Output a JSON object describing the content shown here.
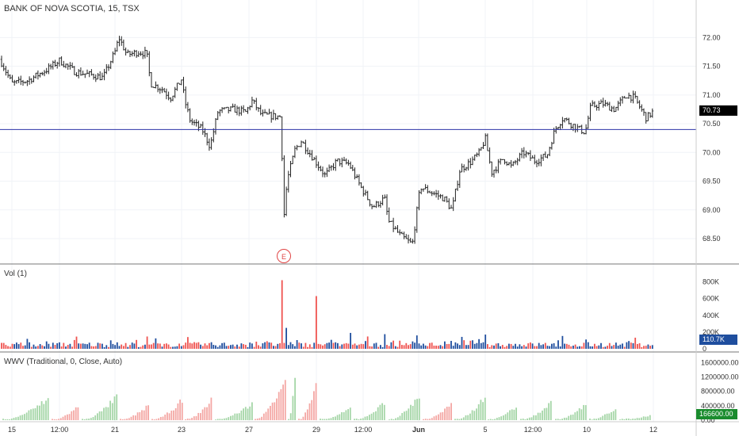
{
  "chart": {
    "title": "BANK OF NOVA SCOTIA, 15, TSX",
    "volume_label": "Vol (1)",
    "wwv_label": "WWV (Traditional, 0, Close, Auto)",
    "earnings_marker": "E"
  },
  "price_axis": {
    "ticks": [
      "72.00",
      "71.50",
      "71.00",
      "70.50",
      "70.00",
      "69.50",
      "69.00",
      "68.50"
    ],
    "current_price": "70.73",
    "current_price_color": "#000000"
  },
  "volume_axis": {
    "ticks": [
      "800K",
      "600K",
      "400K",
      "200K",
      "0"
    ],
    "current_value": "110.7K",
    "current_value_color": "#1f4e9e"
  },
  "wwv_axis": {
    "ticks": [
      "1600000.00",
      "1200000.00",
      "800000.00",
      "400000.00",
      "0.00"
    ],
    "current_value": "166600.00",
    "current_value_color": "#1a8c2e"
  },
  "time_axis": {
    "ticks": [
      "15",
      "12:00",
      "21",
      "23",
      "27",
      "29",
      "12:00",
      "Jun",
      "5",
      "12:00",
      "10",
      "12"
    ]
  },
  "colors": {
    "candle": "#222222",
    "horizontal_line": "#2c32a8",
    "vol_up": "#1f4e9e",
    "vol_down": "#ef5350",
    "wwv_up": "#a5d6a7",
    "wwv_down": "#f4a7a4",
    "grid": "#f0f3f7"
  },
  "chart_data": {
    "type": "candlestick",
    "horizontal_line": 70.4,
    "price_range": [
      68.1,
      72.35
    ],
    "volume_range": [
      0,
      900000
    ],
    "wwv_range": [
      0,
      1650000
    ],
    "price_path": [
      [
        0,
        71.62
      ],
      [
        15,
        71.2
      ],
      [
        35,
        71.25
      ],
      [
        60,
        71.45
      ],
      [
        75,
        71.6
      ],
      [
        95,
        71.4
      ],
      [
        115,
        71.35
      ],
      [
        130,
        71.3
      ],
      [
        145,
        71.75
      ],
      [
        150,
        72.0
      ],
      [
        160,
        71.7
      ],
      [
        175,
        71.75
      ],
      [
        185,
        71.72
      ],
      [
        190,
        71.2
      ],
      [
        205,
        71.1
      ],
      [
        215,
        70.95
      ],
      [
        230,
        71.3
      ],
      [
        232,
        70.95
      ],
      [
        240,
        70.55
      ],
      [
        255,
        70.4
      ],
      [
        265,
        70.1
      ],
      [
        275,
        70.72
      ],
      [
        295,
        70.75
      ],
      [
        310,
        70.7
      ],
      [
        318,
        70.9
      ],
      [
        330,
        70.65
      ],
      [
        355,
        70.62
      ],
      [
        357,
        68.7
      ],
      [
        362,
        69.5
      ],
      [
        372,
        70.05
      ],
      [
        380,
        70.2
      ],
      [
        395,
        69.9
      ],
      [
        410,
        69.6
      ],
      [
        425,
        69.85
      ],
      [
        440,
        69.8
      ],
      [
        455,
        69.4
      ],
      [
        470,
        69.05
      ],
      [
        485,
        69.2
      ],
      [
        490,
        68.8
      ],
      [
        505,
        68.55
      ],
      [
        520,
        68.4
      ],
      [
        530,
        69.4
      ],
      [
        545,
        69.3
      ],
      [
        560,
        69.2
      ],
      [
        570,
        69.0
      ],
      [
        580,
        69.7
      ],
      [
        595,
        69.85
      ],
      [
        605,
        70.0
      ],
      [
        612,
        70.25
      ],
      [
        620,
        69.65
      ],
      [
        635,
        69.9
      ],
      [
        645,
        69.75
      ],
      [
        660,
        70.0
      ],
      [
        675,
        69.85
      ],
      [
        690,
        69.95
      ],
      [
        700,
        70.4
      ],
      [
        710,
        70.6
      ],
      [
        725,
        70.45
      ],
      [
        738,
        70.35
      ],
      [
        745,
        70.8
      ],
      [
        760,
        70.85
      ],
      [
        775,
        70.75
      ],
      [
        790,
        71.0
      ],
      [
        800,
        70.95
      ],
      [
        815,
        70.6
      ],
      [
        825,
        70.73
      ]
    ],
    "volume_spikes": [
      {
        "x": 357,
        "value": 820000,
        "direction": "down"
      },
      {
        "x": 362,
        "value": 250000,
        "direction": "up"
      },
      {
        "x": 400,
        "value": 630000,
        "direction": "down"
      },
      {
        "x": 443,
        "value": 190000,
        "direction": "up"
      },
      {
        "x": 485,
        "value": 175000,
        "direction": "up"
      },
      {
        "x": 527,
        "value": 160000,
        "direction": "up"
      },
      {
        "x": 612,
        "value": 170000,
        "direction": "up"
      },
      {
        "x": 825,
        "value": 110700,
        "direction": "up"
      }
    ],
    "wwv_peaks": [
      {
        "x": 62,
        "value": 680000,
        "direction": "up"
      },
      {
        "x": 100,
        "value": 440000,
        "direction": "down"
      },
      {
        "x": 148,
        "value": 740000,
        "direction": "up"
      },
      {
        "x": 188,
        "value": 470000,
        "direction": "down"
      },
      {
        "x": 230,
        "value": 620000,
        "direction": "down"
      },
      {
        "x": 268,
        "value": 650000,
        "direction": "down"
      },
      {
        "x": 318,
        "value": 500000,
        "direction": "up"
      },
      {
        "x": 360,
        "value": 1350000,
        "direction": "down"
      },
      {
        "x": 373,
        "value": 1580000,
        "direction": "up"
      },
      {
        "x": 400,
        "value": 1100000,
        "direction": "down"
      },
      {
        "x": 443,
        "value": 380000,
        "direction": "up"
      },
      {
        "x": 487,
        "value": 580000,
        "direction": "up"
      },
      {
        "x": 530,
        "value": 780000,
        "direction": "up"
      },
      {
        "x": 570,
        "value": 500000,
        "direction": "down"
      },
      {
        "x": 612,
        "value": 700000,
        "direction": "up"
      },
      {
        "x": 653,
        "value": 450000,
        "direction": "up"
      },
      {
        "x": 697,
        "value": 580000,
        "direction": "up"
      },
      {
        "x": 740,
        "value": 500000,
        "direction": "up"
      },
      {
        "x": 778,
        "value": 400000,
        "direction": "up"
      },
      {
        "x": 822,
        "value": 166600,
        "direction": "up"
      }
    ]
  }
}
